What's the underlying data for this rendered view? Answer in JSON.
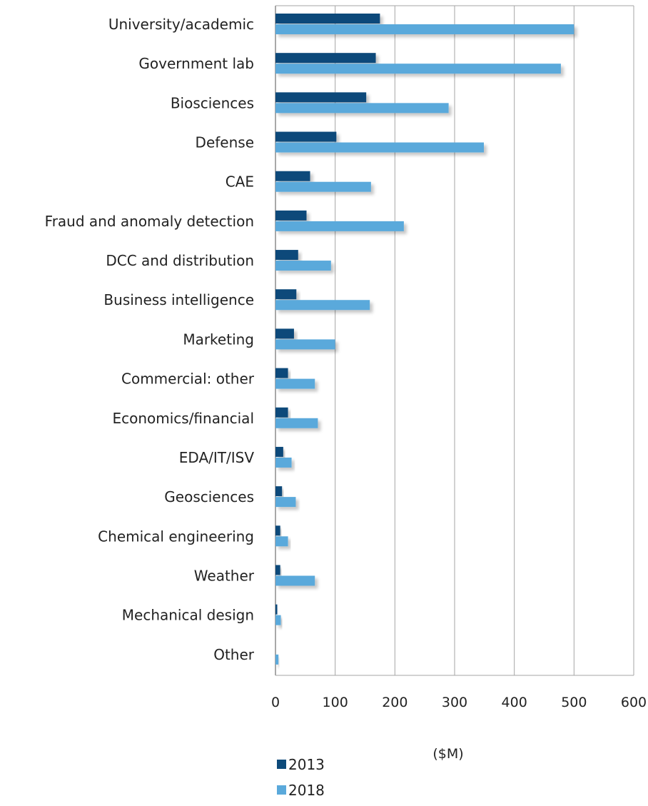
{
  "chart_data": {
    "type": "bar",
    "orientation": "horizontal",
    "categories": [
      "University/academic",
      "Government lab",
      "Biosciences",
      "Defense",
      "CAE",
      "Fraud and anomaly detection",
      "DCC and distribution",
      "Business intelligence",
      "Marketing",
      "Commercial: other",
      "Economics/financial",
      "EDA/IT/ISV",
      "Geosciences",
      "Chemical engineering",
      "Weather",
      "Mechanical design",
      "Other"
    ],
    "series": [
      {
        "name": "2013",
        "color": "#0d4a7a",
        "values": [
          175,
          168,
          152,
          102,
          58,
          52,
          38,
          35,
          31,
          21,
          21,
          13,
          11,
          8,
          8,
          3,
          0
        ]
      },
      {
        "name": "2018",
        "color": "#5aa9db",
        "values": [
          500,
          478,
          290,
          349,
          160,
          215,
          93,
          158,
          100,
          66,
          71,
          27,
          34,
          21,
          66,
          9,
          5
        ]
      }
    ],
    "xlabel": "($M)",
    "xlim": [
      0,
      600
    ],
    "xticks": [
      0,
      100,
      200,
      300,
      400,
      500,
      600
    ],
    "grid": true,
    "legend_position": "bottom-left"
  }
}
